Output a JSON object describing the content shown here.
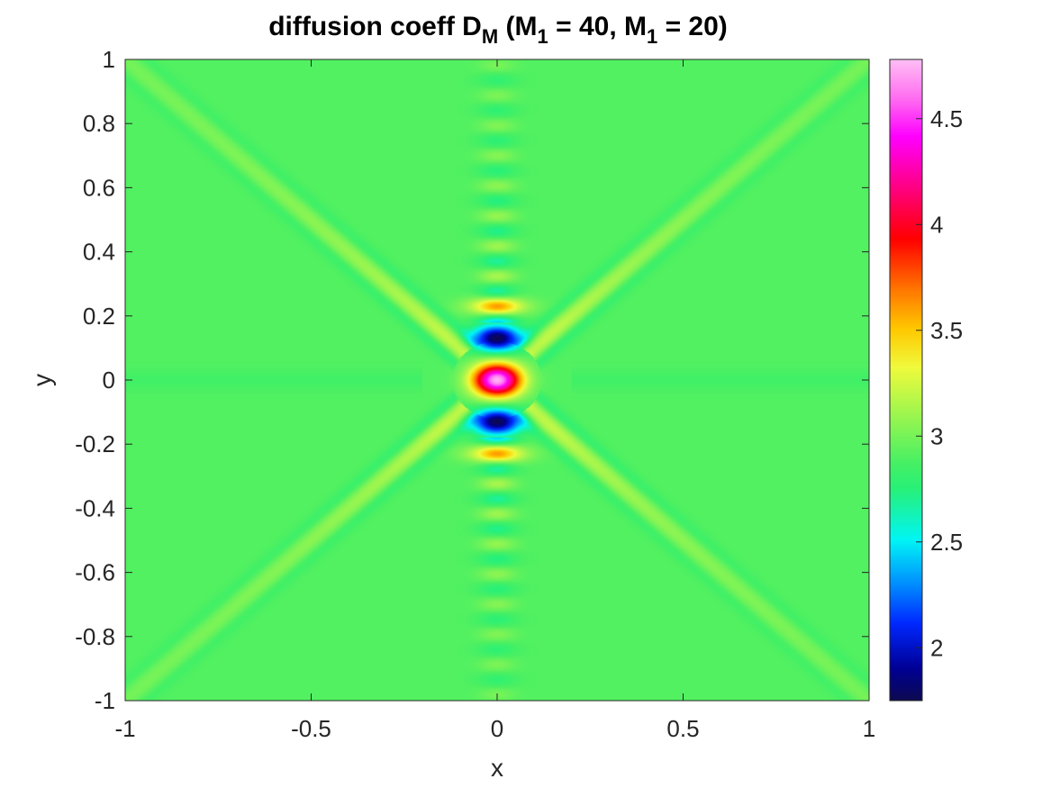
{
  "chart_data": {
    "type": "heatmap",
    "title": {
      "part1": "diffusion coeff D",
      "part1_sub": "M",
      "part2": " (M",
      "part2_sub": "1",
      "part3": " = 40, M",
      "part3_sub": "1",
      "part4": " = 20)"
    },
    "xlabel": "x",
    "ylabel": "y",
    "xlim": [
      -1,
      1
    ],
    "ylim": [
      -1,
      1
    ],
    "x_ticks": [
      -1,
      -0.5,
      0,
      0.5,
      1
    ],
    "x_tick_labels": [
      "-1",
      "-0.5",
      "0",
      "0.5",
      "1"
    ],
    "y_ticks": [
      1,
      0.8,
      0.6,
      0.4,
      0.2,
      0,
      -0.2,
      -0.4,
      -0.6,
      -0.8,
      -1
    ],
    "y_tick_labels": [
      "1",
      "0.8",
      "0.6",
      "0.4",
      "0.2",
      "0",
      "-0.2",
      "-0.4",
      "-0.6",
      "-0.8",
      "-1"
    ],
    "colorbar": {
      "range": [
        1.75,
        4.78
      ],
      "ticks": [
        2,
        2.5,
        3,
        3.5,
        4,
        4.5
      ],
      "tick_labels": [
        "2",
        "2.5",
        "3",
        "3.5",
        "4",
        "4.5"
      ]
    },
    "colormap": "hsv-like",
    "background_value": 2.9,
    "features": {
      "center_peak": {
        "x": 0,
        "y": 0,
        "value": 4.75
      },
      "adjacent_troughs": [
        {
          "x": 0,
          "y": 0.13,
          "value": 1.8
        },
        {
          "x": 0,
          "y": -0.13,
          "value": 1.8
        }
      ],
      "vertical_band_x": 0,
      "diagonal_bands": [
        "y = x",
        "y = -x"
      ]
    },
    "grid": false
  }
}
